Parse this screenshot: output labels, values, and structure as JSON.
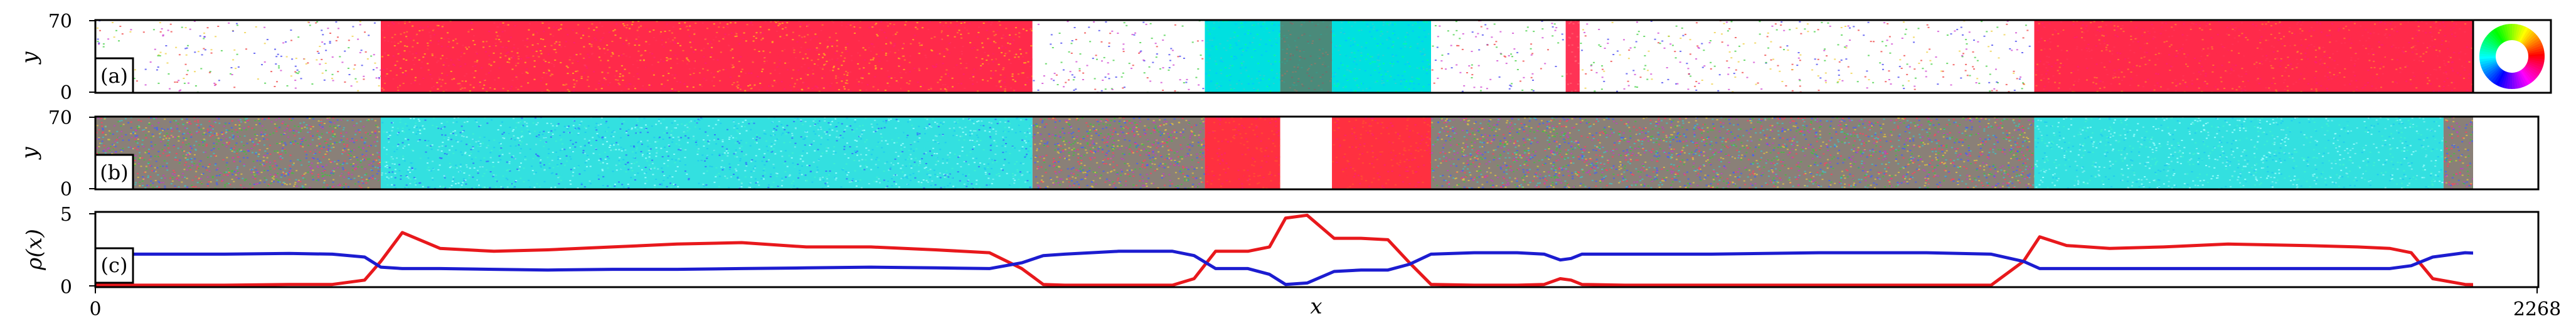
{
  "chart_data": [
    {
      "panel": "(a)",
      "type": "heatmap",
      "ylabel": "y",
      "yticks": [
        "0",
        "70"
      ],
      "ylim": [
        0,
        70
      ],
      "xlim": [
        0,
        2268
      ],
      "color_key": "polarization-angle color wheel",
      "color_scale": [
        "#ff0000",
        "#ffff00",
        "#00ff00",
        "#00ffff",
        "#0000ff",
        "#ff00ff"
      ],
      "regions": [
        {
          "x0": 0,
          "x1": 265,
          "fill": "sparse",
          "colors": [
            "#e33",
            "#3c3",
            "#33e",
            "#c3c",
            "#ec3"
          ]
        },
        {
          "x0": 265,
          "x1": 870,
          "fill": "dense",
          "colors": [
            "#ff2a4a",
            "#ff2a4a",
            "#ff3355",
            "#ff7a30",
            "#ff1f6e",
            "#ffb020"
          ]
        },
        {
          "x0": 870,
          "x1": 1030,
          "fill": "sparse",
          "colors": [
            "#e33",
            "#3c3",
            "#33e",
            "#c3c"
          ]
        },
        {
          "x0": 1030,
          "x1": 1100,
          "fill": "dense",
          "colors": [
            "#00e0e0",
            "#00c8ff",
            "#00ffa0",
            "#30d0d0"
          ]
        },
        {
          "x0": 1100,
          "x1": 1148,
          "fill": "dense",
          "colors": [
            "#4a8a7a",
            "#7a6a6a",
            "#3a9a8a",
            "#8a7a6a"
          ]
        },
        {
          "x0": 1148,
          "x1": 1240,
          "fill": "dense",
          "colors": [
            "#00e0e0",
            "#00c8ff",
            "#00ffa0",
            "#30d0d0"
          ]
        },
        {
          "x0": 1240,
          "x1": 1365,
          "fill": "sparse",
          "colors": [
            "#e33",
            "#3c3",
            "#33e",
            "#c3c"
          ]
        },
        {
          "x0": 1365,
          "x1": 1378,
          "fill": "dense",
          "colors": [
            "#ff3355",
            "#ff6070"
          ]
        },
        {
          "x0": 1378,
          "x1": 1800,
          "fill": "sparse",
          "colors": [
            "#e33",
            "#3c3",
            "#33e",
            "#c3c",
            "#ec3"
          ]
        },
        {
          "x0": 1800,
          "x1": 2268,
          "fill": "dense",
          "colors": [
            "#ff2a4a",
            "#ff2a4a",
            "#ff3355",
            "#ff7a30",
            "#ff1f6e"
          ]
        }
      ]
    },
    {
      "panel": "(b)",
      "type": "heatmap",
      "ylabel": "y",
      "yticks": [
        "0",
        "70"
      ],
      "ylim": [
        0,
        70
      ],
      "xlim": [
        0,
        2268
      ],
      "regions": [
        {
          "x0": 0,
          "x1": 265,
          "fill": "noise",
          "colors": [
            "#ff4060",
            "#40c040",
            "#4060ff",
            "#c040c0",
            "#e0c040",
            "#40c0c0"
          ]
        },
        {
          "x0": 265,
          "x1": 870,
          "fill": "dense",
          "colors": [
            "#33e0e0",
            "#40f0d0",
            "#20c8f0",
            "#80f0f0",
            "#3070ff",
            "#a0ffff"
          ]
        },
        {
          "x0": 870,
          "x1": 1030,
          "fill": "noise",
          "colors": [
            "#ff4060",
            "#40c040",
            "#4060ff",
            "#c040c0",
            "#e0c040"
          ]
        },
        {
          "x0": 1030,
          "x1": 1100,
          "fill": "dense",
          "colors": [
            "#ff3040",
            "#ff5030",
            "#ff2070"
          ]
        },
        {
          "x0": 1100,
          "x1": 1148,
          "fill": "blank",
          "colors": [
            "#ffffff"
          ]
        },
        {
          "x0": 1148,
          "x1": 1240,
          "fill": "dense",
          "colors": [
            "#ff3040",
            "#ff5030",
            "#ff2070"
          ]
        },
        {
          "x0": 1240,
          "x1": 1800,
          "fill": "noise",
          "colors": [
            "#ff4060",
            "#40c040",
            "#4060ff",
            "#c040c0",
            "#e0c040",
            "#40c0c0"
          ]
        },
        {
          "x0": 1800,
          "x1": 2180,
          "fill": "dense",
          "colors": [
            "#33e0e0",
            "#40f0d0",
            "#20c8f0",
            "#80f0f0",
            "#a0ffff"
          ]
        },
        {
          "x0": 2180,
          "x1": 2268,
          "fill": "noise",
          "colors": [
            "#ff4060",
            "#40c040",
            "#4060ff",
            "#c040c0",
            "#e0c040"
          ]
        }
      ]
    },
    {
      "panel": "(c)",
      "type": "line",
      "xlabel": "x",
      "ylabel": "ρ(x)",
      "xlim": [
        0,
        2268
      ],
      "ylim": [
        0,
        5
      ],
      "xticks": [
        "0",
        "2268"
      ],
      "yticks": [
        "0",
        "5"
      ],
      "series": [
        {
          "color": "#e8181c",
          "x": [
            0,
            60,
            120,
            180,
            220,
            250,
            265,
            285,
            320,
            370,
            420,
            480,
            540,
            600,
            660,
            720,
            780,
            830,
            860,
            880,
            900,
            950,
            1000,
            1020,
            1040,
            1070,
            1090,
            1105,
            1125,
            1150,
            1175,
            1200,
            1220,
            1240,
            1280,
            1320,
            1345,
            1360,
            1370,
            1380,
            1420,
            1500,
            1600,
            1700,
            1760,
            1790,
            1805,
            1830,
            1870,
            1920,
            1980,
            2050,
            2100,
            2130,
            2150,
            2170,
            2200,
            2230,
            2268
          ],
          "values": [
            0.05,
            0.05,
            0.05,
            0.1,
            0.1,
            0.4,
            1.7,
            3.7,
            2.6,
            2.4,
            2.5,
            2.7,
            2.9,
            3.0,
            2.7,
            2.7,
            2.5,
            2.3,
            1.2,
            0.1,
            0.05,
            0.05,
            0.05,
            0.5,
            2.4,
            2.4,
            2.7,
            4.7,
            4.9,
            3.3,
            3.3,
            3.2,
            1.6,
            0.1,
            0.05,
            0.05,
            0.1,
            0.5,
            0.4,
            0.1,
            0.05,
            0.05,
            0.05,
            0.05,
            0.05,
            1.7,
            3.4,
            2.8,
            2.6,
            2.7,
            2.9,
            2.8,
            2.7,
            2.6,
            2.3,
            0.5,
            0.1,
            0.05,
            0.05
          ]
        },
        {
          "color": "#1c1cd0",
          "x": [
            0,
            60,
            120,
            180,
            220,
            250,
            265,
            285,
            320,
            370,
            420,
            480,
            540,
            600,
            660,
            720,
            780,
            830,
            860,
            880,
            900,
            950,
            1000,
            1020,
            1040,
            1070,
            1090,
            1105,
            1125,
            1150,
            1175,
            1200,
            1220,
            1240,
            1280,
            1320,
            1345,
            1360,
            1370,
            1380,
            1420,
            1500,
            1600,
            1700,
            1760,
            1790,
            1805,
            1830,
            1870,
            1920,
            1980,
            2050,
            2100,
            2130,
            2150,
            2170,
            2200,
            2230,
            2268
          ],
          "values": [
            2.2,
            2.2,
            2.2,
            2.25,
            2.2,
            2.0,
            1.3,
            1.2,
            1.2,
            1.15,
            1.1,
            1.15,
            1.15,
            1.2,
            1.25,
            1.3,
            1.25,
            1.2,
            1.6,
            2.1,
            2.2,
            2.4,
            2.4,
            2.1,
            1.2,
            1.2,
            0.8,
            0.1,
            0.2,
            1.0,
            1.1,
            1.1,
            1.5,
            2.2,
            2.3,
            2.3,
            2.2,
            1.8,
            1.9,
            2.2,
            2.2,
            2.2,
            2.3,
            2.3,
            2.2,
            1.7,
            1.2,
            1.2,
            1.2,
            1.2,
            1.2,
            1.2,
            1.2,
            1.2,
            1.4,
            2.0,
            2.3,
            2.2,
            2.2
          ]
        }
      ]
    }
  ]
}
